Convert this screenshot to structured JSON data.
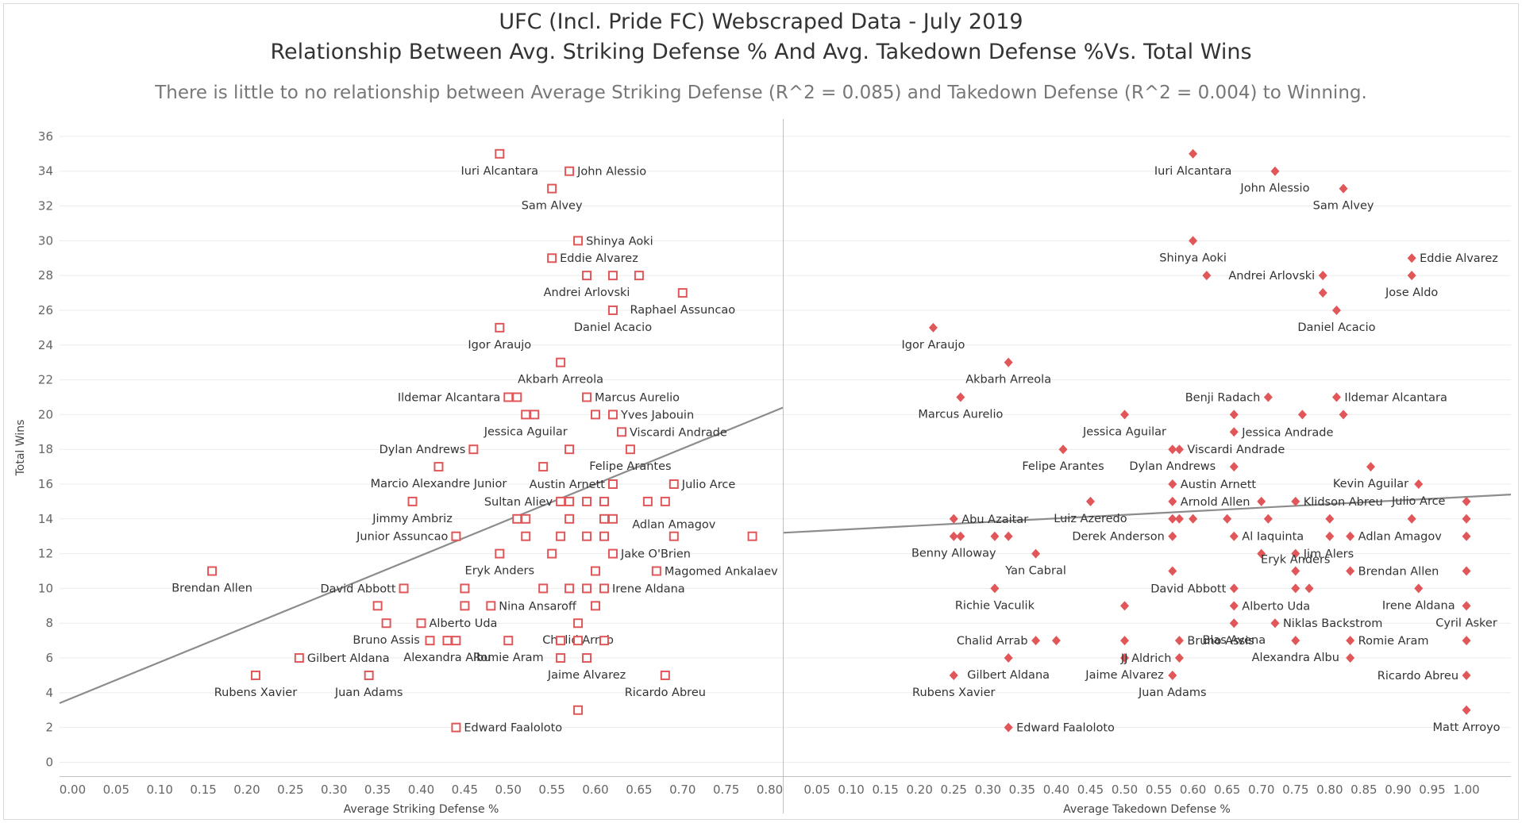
{
  "header": {
    "title_line1": "UFC (Incl. Pride FC) Webscraped Data - July 2019",
    "title_line2": "Relationship Between Avg. Striking Defense % And Avg. Takedown Defense  %Vs. Total Wins",
    "subtitle": "There is little to no relationship between Average Striking Defense (R^2 = 0.085) and Takedown Defense (R^2 = 0.004) to Winning."
  },
  "colors": {
    "marker": "#e15759",
    "trend": "#8c8c8c",
    "grid": "#ebebeb",
    "axis": "#bfbfbf",
    "text": "#333333"
  },
  "chart_data": [
    {
      "type": "scatter",
      "marker": "hollow-square",
      "xlabel": "Average Striking Defense %",
      "ylabel": "Total Wins",
      "xlim": [
        -0.015,
        0.815
      ],
      "ylim": [
        -0.8,
        37
      ],
      "xticks": [
        "0.00",
        "0.05",
        "0.10",
        "0.15",
        "0.20",
        "0.25",
        "0.30",
        "0.35",
        "0.40",
        "0.45",
        "0.50",
        "0.55",
        "0.60",
        "0.65",
        "0.70",
        "0.75",
        "0.80"
      ],
      "yticks": [
        "0",
        "2",
        "4",
        "6",
        "8",
        "10",
        "12",
        "14",
        "16",
        "18",
        "20",
        "22",
        "24",
        "26",
        "28",
        "30",
        "32",
        "34",
        "36"
      ],
      "trend": {
        "x": [
          -0.015,
          0.815
        ],
        "y": [
          3.4,
          20.4
        ]
      },
      "points": [
        {
          "x": 0.49,
          "y": 35,
          "label": "Iuri Alcantara",
          "lp": "below"
        },
        {
          "x": 0.57,
          "y": 34,
          "label": "John Alessio",
          "lp": "right"
        },
        {
          "x": 0.55,
          "y": 33,
          "label": "Sam Alvey",
          "lp": "below"
        },
        {
          "x": 0.58,
          "y": 30,
          "label": "Shinya Aoki",
          "lp": "right"
        },
        {
          "x": 0.55,
          "y": 29,
          "label": "Eddie Alvarez",
          "lp": "right"
        },
        {
          "x": 0.59,
          "y": 28,
          "label": "Andrei Arlovski",
          "lp": "below"
        },
        {
          "x": 0.62,
          "y": 28,
          "label": ""
        },
        {
          "x": 0.65,
          "y": 28,
          "label": ""
        },
        {
          "x": 0.7,
          "y": 27,
          "label": "Raphael Assuncao",
          "lp": "below"
        },
        {
          "x": 0.62,
          "y": 26,
          "label": "Daniel Acacio",
          "lp": "below"
        },
        {
          "x": 0.49,
          "y": 25,
          "label": "Igor Araujo",
          "lp": "below"
        },
        {
          "x": 0.56,
          "y": 23,
          "label": "Akbarh Arreola",
          "lp": "below"
        },
        {
          "x": 0.5,
          "y": 21,
          "label": "Ildemar Alcantara",
          "lp": "left"
        },
        {
          "x": 0.51,
          "y": 21,
          "label": ""
        },
        {
          "x": 0.59,
          "y": 21,
          "label": "Marcus Aurelio",
          "lp": "right"
        },
        {
          "x": 0.52,
          "y": 20,
          "label": "Jessica Aguilar",
          "lp": "below"
        },
        {
          "x": 0.53,
          "y": 20,
          "label": ""
        },
        {
          "x": 0.6,
          "y": 20,
          "label": ""
        },
        {
          "x": 0.62,
          "y": 20,
          "label": "Yves Jabouin",
          "lp": "right"
        },
        {
          "x": 0.63,
          "y": 19,
          "label": "Viscardi Andrade",
          "lp": "right"
        },
        {
          "x": 0.46,
          "y": 18,
          "label": "Dylan Andrews",
          "lp": "left"
        },
        {
          "x": 0.57,
          "y": 18,
          "label": ""
        },
        {
          "x": 0.64,
          "y": 18,
          "label": "Felipe Arantes",
          "lp": "below"
        },
        {
          "x": 0.42,
          "y": 17,
          "label": "Marcio Alexandre Junior",
          "lp": "below"
        },
        {
          "x": 0.54,
          "y": 17,
          "label": ""
        },
        {
          "x": 0.62,
          "y": 16,
          "label": "Austin Arnett",
          "lp": "left"
        },
        {
          "x": 0.69,
          "y": 16,
          "label": "Julio Arce",
          "lp": "right"
        },
        {
          "x": 0.39,
          "y": 15,
          "label": "Jimmy Ambriz",
          "lp": "below"
        },
        {
          "x": 0.56,
          "y": 15,
          "label": "Sultan Aliev",
          "lp": "left"
        },
        {
          "x": 0.57,
          "y": 15,
          "label": ""
        },
        {
          "x": 0.59,
          "y": 15,
          "label": ""
        },
        {
          "x": 0.61,
          "y": 15,
          "label": ""
        },
        {
          "x": 0.66,
          "y": 15,
          "label": ""
        },
        {
          "x": 0.68,
          "y": 15,
          "label": ""
        },
        {
          "x": 0.51,
          "y": 14,
          "label": ""
        },
        {
          "x": 0.52,
          "y": 14,
          "label": ""
        },
        {
          "x": 0.57,
          "y": 14,
          "label": ""
        },
        {
          "x": 0.61,
          "y": 14,
          "label": ""
        },
        {
          "x": 0.62,
          "y": 14,
          "label": ""
        },
        {
          "x": 0.44,
          "y": 13,
          "label": "Junior Assuncao",
          "lp": "left"
        },
        {
          "x": 0.52,
          "y": 13,
          "label": ""
        },
        {
          "x": 0.56,
          "y": 13,
          "label": ""
        },
        {
          "x": 0.59,
          "y": 13,
          "label": ""
        },
        {
          "x": 0.61,
          "y": 13,
          "label": ""
        },
        {
          "x": 0.69,
          "y": 13,
          "label": "Adlan Amagov",
          "lp": "above"
        },
        {
          "x": 0.78,
          "y": 13,
          "label": ""
        },
        {
          "x": 0.49,
          "y": 12,
          "label": "Eryk Anders",
          "lp": "below"
        },
        {
          "x": 0.55,
          "y": 12,
          "label": ""
        },
        {
          "x": 0.62,
          "y": 12,
          "label": "Jake O'Brien",
          "lp": "right"
        },
        {
          "x": 0.16,
          "y": 11,
          "label": "Brendan Allen",
          "lp": "below"
        },
        {
          "x": 0.6,
          "y": 11,
          "label": ""
        },
        {
          "x": 0.67,
          "y": 11,
          "label": "Magomed Ankalaev",
          "lp": "right"
        },
        {
          "x": 0.38,
          "y": 10,
          "label": "David Abbott",
          "lp": "left"
        },
        {
          "x": 0.45,
          "y": 10,
          "label": ""
        },
        {
          "x": 0.54,
          "y": 10,
          "label": ""
        },
        {
          "x": 0.57,
          "y": 10,
          "label": ""
        },
        {
          "x": 0.59,
          "y": 10,
          "label": ""
        },
        {
          "x": 0.61,
          "y": 10,
          "label": "Irene Aldana",
          "lp": "right"
        },
        {
          "x": 0.35,
          "y": 9,
          "label": ""
        },
        {
          "x": 0.45,
          "y": 9,
          "label": ""
        },
        {
          "x": 0.48,
          "y": 9,
          "label": "Nina Ansaroff",
          "lp": "right"
        },
        {
          "x": 0.6,
          "y": 9,
          "label": ""
        },
        {
          "x": 0.36,
          "y": 8,
          "label": "Bruno Assis",
          "lp": "below"
        },
        {
          "x": 0.4,
          "y": 8,
          "label": "Alberto Uda",
          "lp": "right"
        },
        {
          "x": 0.58,
          "y": 8,
          "label": "Chalid Arrab",
          "lp": "below"
        },
        {
          "x": 0.41,
          "y": 7,
          "label": ""
        },
        {
          "x": 0.43,
          "y": 7,
          "label": "Alexandra Albu",
          "lp": "below"
        },
        {
          "x": 0.44,
          "y": 7,
          "label": ""
        },
        {
          "x": 0.5,
          "y": 7,
          "label": "Romie Aram",
          "lp": "below"
        },
        {
          "x": 0.56,
          "y": 7,
          "label": ""
        },
        {
          "x": 0.58,
          "y": 7,
          "label": ""
        },
        {
          "x": 0.61,
          "y": 7,
          "label": ""
        },
        {
          "x": 0.26,
          "y": 6,
          "label": "Gilbert Aldana",
          "lp": "right"
        },
        {
          "x": 0.56,
          "y": 6,
          "label": ""
        },
        {
          "x": 0.59,
          "y": 6,
          "label": "Jaime Alvarez",
          "lp": "below"
        },
        {
          "x": 0.21,
          "y": 5,
          "label": "Rubens Xavier",
          "lp": "below"
        },
        {
          "x": 0.34,
          "y": 5,
          "label": "Juan Adams",
          "lp": "below"
        },
        {
          "x": 0.68,
          "y": 5,
          "label": "Ricardo Abreu",
          "lp": "below"
        },
        {
          "x": 0.58,
          "y": 3,
          "label": ""
        },
        {
          "x": 0.44,
          "y": 2,
          "label": "Edward Faaloloto",
          "lp": "right"
        }
      ]
    },
    {
      "type": "scatter",
      "marker": "filled-diamond",
      "xlabel": "Average Takedown Defense %",
      "ylabel": "",
      "xlim": [
        0.0,
        1.065
      ],
      "ylim": [
        -0.8,
        37
      ],
      "xticks": [
        "0.05",
        "0.10",
        "0.15",
        "0.20",
        "0.25",
        "0.30",
        "0.35",
        "0.40",
        "0.45",
        "0.50",
        "0.55",
        "0.60",
        "0.65",
        "0.70",
        "0.75",
        "0.80",
        "0.85",
        "0.90",
        "0.95",
        "1.00"
      ],
      "trend": {
        "x": [
          0.0,
          1.065
        ],
        "y": [
          13.2,
          15.4
        ]
      },
      "points": [
        {
          "x": 0.6,
          "y": 35,
          "label": "Iuri Alcantara",
          "lp": "below"
        },
        {
          "x": 0.72,
          "y": 34,
          "label": "John Alessio",
          "lp": "below"
        },
        {
          "x": 0.82,
          "y": 33,
          "label": "Sam Alvey",
          "lp": "below"
        },
        {
          "x": 0.6,
          "y": 30,
          "label": "Shinya Aoki",
          "lp": "below"
        },
        {
          "x": 0.92,
          "y": 29,
          "label": "Eddie Alvarez",
          "lp": "right"
        },
        {
          "x": 0.62,
          "y": 28,
          "label": ""
        },
        {
          "x": 0.79,
          "y": 28,
          "label": "Andrei Arlovski",
          "lp": "left"
        },
        {
          "x": 0.92,
          "y": 28,
          "label": "Jose Aldo",
          "lp": "below"
        },
        {
          "x": 0.79,
          "y": 27,
          "label": ""
        },
        {
          "x": 0.81,
          "y": 26,
          "label": "Daniel Acacio",
          "lp": "below"
        },
        {
          "x": 0.22,
          "y": 25,
          "label": "Igor Araujo",
          "lp": "below"
        },
        {
          "x": 0.33,
          "y": 23,
          "label": "Akbarh Arreola",
          "lp": "below"
        },
        {
          "x": 0.26,
          "y": 21,
          "label": "Marcus Aurelio",
          "lp": "below"
        },
        {
          "x": 0.71,
          "y": 21,
          "label": "Benji Radach",
          "lp": "left"
        },
        {
          "x": 0.81,
          "y": 21,
          "label": "Ildemar Alcantara",
          "lp": "right"
        },
        {
          "x": 0.5,
          "y": 20,
          "label": "Jessica Aguilar",
          "lp": "below"
        },
        {
          "x": 0.66,
          "y": 20,
          "label": ""
        },
        {
          "x": 0.76,
          "y": 20,
          "label": ""
        },
        {
          "x": 0.82,
          "y": 20,
          "label": ""
        },
        {
          "x": 0.66,
          "y": 19,
          "label": "Jessica Andrade",
          "lp": "right"
        },
        {
          "x": 0.41,
          "y": 18,
          "label": "Felipe Arantes",
          "lp": "below"
        },
        {
          "x": 0.57,
          "y": 18,
          "label": "Dylan Andrews",
          "lp": "below"
        },
        {
          "x": 0.58,
          "y": 18,
          "label": "Viscardi Andrade",
          "lp": "right"
        },
        {
          "x": 0.66,
          "y": 17,
          "label": ""
        },
        {
          "x": 0.86,
          "y": 17,
          "label": "Kevin Aguilar",
          "lp": "below"
        },
        {
          "x": 0.57,
          "y": 16,
          "label": "Austin Arnett",
          "lp": "right"
        },
        {
          "x": 0.93,
          "y": 16,
          "label": "Julio Arce",
          "lp": "below"
        },
        {
          "x": 0.45,
          "y": 15,
          "label": "Luiz Azeredo",
          "lp": "below"
        },
        {
          "x": 0.57,
          "y": 15,
          "label": "Arnold Allen",
          "lp": "right"
        },
        {
          "x": 0.7,
          "y": 15,
          "label": ""
        },
        {
          "x": 0.75,
          "y": 15,
          "label": "Klidson Abreu",
          "lp": "right"
        },
        {
          "x": 1.0,
          "y": 15,
          "label": ""
        },
        {
          "x": 0.25,
          "y": 14,
          "label": "Abu Azaitar",
          "lp": "right"
        },
        {
          "x": 0.57,
          "y": 14,
          "label": ""
        },
        {
          "x": 0.58,
          "y": 14,
          "label": ""
        },
        {
          "x": 0.6,
          "y": 14,
          "label": ""
        },
        {
          "x": 0.65,
          "y": 14,
          "label": ""
        },
        {
          "x": 0.71,
          "y": 14,
          "label": ""
        },
        {
          "x": 0.8,
          "y": 14,
          "label": ""
        },
        {
          "x": 0.92,
          "y": 14,
          "label": ""
        },
        {
          "x": 1.0,
          "y": 14,
          "label": ""
        },
        {
          "x": 0.25,
          "y": 13,
          "label": "Benny Alloway",
          "lp": "below"
        },
        {
          "x": 0.26,
          "y": 13,
          "label": ""
        },
        {
          "x": 0.31,
          "y": 13,
          "label": ""
        },
        {
          "x": 0.33,
          "y": 13,
          "label": ""
        },
        {
          "x": 0.57,
          "y": 13,
          "label": "Derek Anderson",
          "lp": "left"
        },
        {
          "x": 0.66,
          "y": 13,
          "label": "Al Iaquinta",
          "lp": "right"
        },
        {
          "x": 0.8,
          "y": 13,
          "label": ""
        },
        {
          "x": 0.83,
          "y": 13,
          "label": "Adlan Amagov",
          "lp": "right"
        },
        {
          "x": 1.0,
          "y": 13,
          "label": ""
        },
        {
          "x": 0.37,
          "y": 12,
          "label": "Yan Cabral",
          "lp": "below"
        },
        {
          "x": 0.7,
          "y": 12,
          "label": ""
        },
        {
          "x": 0.75,
          "y": 12,
          "label": "Jim Alers",
          "lp": "right"
        },
        {
          "x": 0.57,
          "y": 11,
          "label": ""
        },
        {
          "x": 0.75,
          "y": 11,
          "label": "Eryk Anders",
          "lp": "above"
        },
        {
          "x": 0.83,
          "y": 11,
          "label": "Brendan Allen",
          "lp": "right"
        },
        {
          "x": 1.0,
          "y": 11,
          "label": ""
        },
        {
          "x": 0.31,
          "y": 10,
          "label": "Richie Vaculik",
          "lp": "below"
        },
        {
          "x": 0.66,
          "y": 10,
          "label": "David Abbott",
          "lp": "left"
        },
        {
          "x": 0.75,
          "y": 10,
          "label": ""
        },
        {
          "x": 0.77,
          "y": 10,
          "label": ""
        },
        {
          "x": 0.93,
          "y": 10,
          "label": "Irene Aldana",
          "lp": "below"
        },
        {
          "x": 0.5,
          "y": 9,
          "label": ""
        },
        {
          "x": 0.66,
          "y": 9,
          "label": "Alberto Uda",
          "lp": "right"
        },
        {
          "x": 1.0,
          "y": 9,
          "label": "Cyril Asker",
          "lp": "below"
        },
        {
          "x": 0.66,
          "y": 8,
          "label": "Blas Avena",
          "lp": "below"
        },
        {
          "x": 0.72,
          "y": 8,
          "label": "Niklas Backstrom",
          "lp": "right"
        },
        {
          "x": 0.37,
          "y": 7,
          "label": "Chalid Arrab",
          "lp": "left"
        },
        {
          "x": 0.4,
          "y": 7,
          "label": ""
        },
        {
          "x": 0.5,
          "y": 7,
          "label": ""
        },
        {
          "x": 0.58,
          "y": 7,
          "label": "Bruno Assis",
          "lp": "right"
        },
        {
          "x": 0.75,
          "y": 7,
          "label": "Alexandra Albu",
          "lp": "below"
        },
        {
          "x": 0.83,
          "y": 7,
          "label": "Romie Aram",
          "lp": "right"
        },
        {
          "x": 1.0,
          "y": 7,
          "label": ""
        },
        {
          "x": 0.33,
          "y": 6,
          "label": "Gilbert Aldana",
          "lp": "below"
        },
        {
          "x": 0.5,
          "y": 6,
          "label": "Jaime Alvarez",
          "lp": "below"
        },
        {
          "x": 0.58,
          "y": 6,
          "label": "JJ Aldrich",
          "lp": "left"
        },
        {
          "x": 0.83,
          "y": 6,
          "label": ""
        },
        {
          "x": 0.25,
          "y": 5,
          "label": "Rubens Xavier",
          "lp": "below"
        },
        {
          "x": 0.57,
          "y": 5,
          "label": "Juan Adams",
          "lp": "below"
        },
        {
          "x": 1.0,
          "y": 5,
          "label": "Ricardo Abreu",
          "lp": "left"
        },
        {
          "x": 1.0,
          "y": 3,
          "label": "Matt Arroyo",
          "lp": "below"
        },
        {
          "x": 0.33,
          "y": 2,
          "label": "Edward Faaloloto",
          "lp": "right"
        }
      ]
    }
  ]
}
